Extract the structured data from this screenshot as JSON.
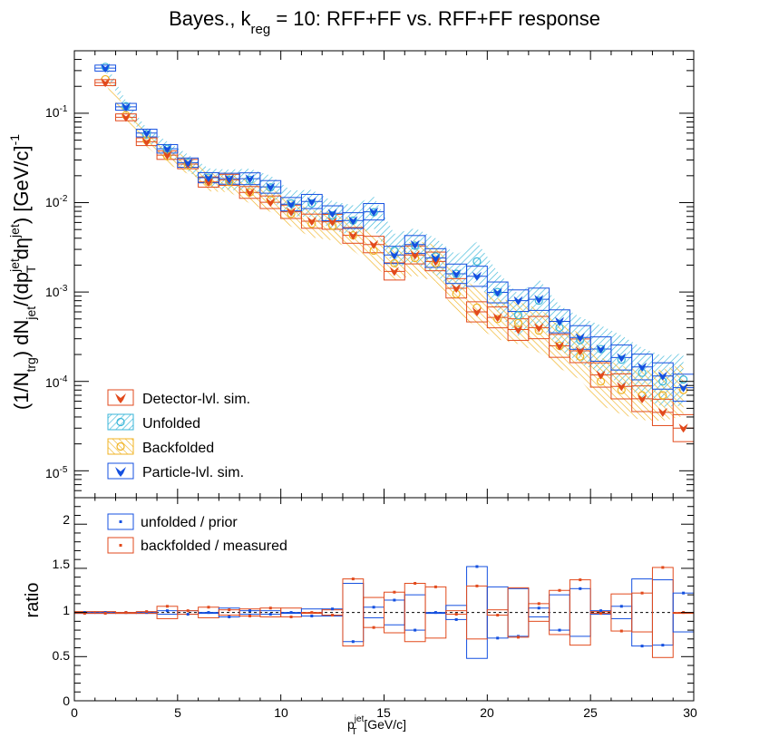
{
  "title": "Bayes., k",
  "title_sub": "reg",
  "title_rest": " = 10: RFF+FF vs. RFF+FF response",
  "top_panel": {
    "ylabel": {
      "a": "(1/N",
      "a_sub": "trg",
      "b": ") dN",
      "b_sub": "jet",
      "c": "/(dp",
      "c_sup": "jet",
      "c_sub": "T",
      "d": " dη",
      "d_sup": "jet",
      "e": ") [GeV/c]",
      "e_sup": "-1"
    },
    "ytick_labels": [
      {
        "b": "10",
        "e": "-5"
      },
      {
        "b": "10",
        "e": "-4"
      },
      {
        "b": "10",
        "e": "-3"
      },
      {
        "b": "10",
        "e": "-2"
      },
      {
        "b": "10",
        "e": "-1"
      }
    ],
    "legend": [
      "Detector-lvl. sim.",
      "Unfolded",
      "Backfolded",
      "Particle-lvl. sim."
    ]
  },
  "bottom_panel": {
    "ylabel": "ratio",
    "ytick_labels": [
      "0",
      "0.5",
      "1",
      "1.5",
      "2"
    ],
    "legend": [
      "unfolded / prior",
      "backfolded / measured"
    ]
  },
  "xlabel": {
    "p": "p",
    "sup": "jet",
    "sub": "T",
    "rest": " [GeV/c]"
  },
  "xtick_labels": [
    "0",
    "5",
    "10",
    "15",
    "20",
    "25",
    "30"
  ],
  "colors": {
    "detector": "#e24a1c",
    "unfolded": "#38b6d8",
    "backfolded": "#f0b323",
    "particle": "#1450e0"
  },
  "chart_data": [
    {
      "type": "scatter",
      "x_bins": [
        1.5,
        2.5,
        3.5,
        4.5,
        5.5,
        6.5,
        7.5,
        8.5,
        9.5,
        10.5,
        11.5,
        12.5,
        13.5,
        14.5,
        15.5,
        16.5,
        17.5,
        18.5,
        19.5,
        20.5,
        21.5,
        22.5,
        23.5,
        24.5,
        25.5,
        26.5,
        27.5,
        28.5,
        29.5
      ],
      "xlim": [
        0,
        30
      ],
      "ylim": [
        5e-06,
        0.5
      ],
      "ylog": true,
      "series": [
        {
          "name": "Detector-lvl. sim.",
          "values": [
            0.22,
            0.09,
            0.048,
            0.034,
            0.027,
            0.017,
            0.018,
            0.013,
            0.0101,
            0.0079,
            0.0062,
            0.0061,
            0.0043,
            0.0034,
            0.0017,
            0.0026,
            0.0022,
            0.0011,
            0.0006,
            0.00052,
            0.00038,
            0.0004,
            0.00025,
            0.00022,
            0.000118,
            8.8e-05,
            6.4e-05,
            4.5e-05,
            3e-05
          ]
        },
        {
          "name": "Unfolded",
          "values": [
            0.33,
            0.12,
            0.058,
            0.04,
            0.028,
            0.019,
            0.018,
            0.018,
            0.0148,
            0.0098,
            0.0098,
            0.0072,
            0.0063,
            0.0078,
            0.0029,
            0.0033,
            0.0025,
            0.0016,
            0.0022,
            0.001,
            0.00055,
            0.0008,
            0.0004,
            0.00029,
            0.00023,
            0.000175,
            0.000125,
            0.0001,
            0.000105
          ]
        },
        {
          "name": "Backfolded",
          "values": [
            0.24,
            0.095,
            0.05,
            0.033,
            0.026,
            0.017,
            0.017,
            0.013,
            0.0107,
            0.0075,
            0.0058,
            0.0055,
            0.0043,
            0.0029,
            0.0021,
            0.0024,
            0.0021,
            0.00095,
            0.00067,
            0.0005,
            0.00045,
            0.00037,
            0.00025,
            0.00019,
            0.0001,
            8e-05,
            7e-05,
            7e-05,
            8e-05
          ]
        },
        {
          "name": "Particle-lvl. sim.",
          "values": [
            0.32,
            0.118,
            0.06,
            0.04,
            0.028,
            0.019,
            0.0185,
            0.0185,
            0.015,
            0.0096,
            0.0103,
            0.0076,
            0.0063,
            0.0079,
            0.0026,
            0.0034,
            0.0024,
            0.0016,
            0.0015,
            0.00099,
            0.0008,
            0.00083,
            0.00047,
            0.00031,
            0.00023,
            0.000185,
            0.000145,
            0.000115,
            8.5e-05
          ]
        }
      ]
    },
    {
      "type": "scatter",
      "x_bins": [
        0.5,
        1.5,
        2.5,
        3.5,
        4.5,
        5.5,
        6.5,
        7.5,
        8.5,
        9.5,
        10.5,
        11.5,
        12.5,
        13.5,
        14.5,
        15.5,
        16.5,
        17.5,
        18.5,
        19.5,
        20.5,
        21.5,
        22.5,
        23.5,
        24.5,
        25.5,
        26.5,
        27.5,
        28.5,
        29.5
      ],
      "xlim": [
        0,
        30
      ],
      "ylim": [
        0,
        2.3
      ],
      "reference_line": 1,
      "series": [
        {
          "name": "unfolded / prior",
          "values": [
            1.0,
            1.0,
            1.0,
            1.0,
            1.02,
            0.98,
            1.0,
            0.95,
            1.02,
            0.98,
            1.0,
            0.96,
            1.04,
            0.67,
            1.06,
            1.14,
            0.8,
            1.0,
            0.92,
            1.52,
            0.71,
            0.73,
            1.05,
            0.8,
            1.27,
            1.02,
            1.07,
            0.62,
            0.63,
            1.22
          ]
        },
        {
          "name": "backfolded / measured",
          "values": [
            0.99,
            0.99,
            1.0,
            1.01,
            1.07,
            1.02,
            1.06,
            1.03,
            0.96,
            1.05,
            0.95,
            1.0,
            0.97,
            1.38,
            0.83,
            1.23,
            1.33,
            1.29,
            0.98,
            1.3,
            0.97,
            0.72,
            1.1,
            1.25,
            1.37,
            0.99,
            0.79,
            1.22,
            1.51,
            1.0
          ]
        }
      ]
    }
  ]
}
